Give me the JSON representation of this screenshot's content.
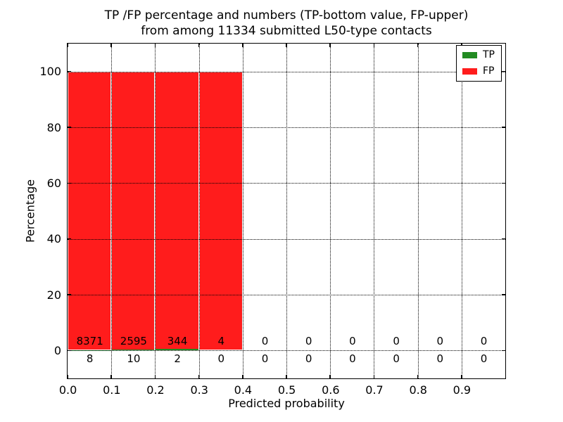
{
  "title": {
    "line1": "TP /FP percentage and numbers (TP-bottom value, FP-upper)",
    "line2": "from among 11334 submitted L50-type contacts"
  },
  "chart_data": {
    "type": "bar",
    "stacked": true,
    "title": "TP /FP percentage and numbers (TP-bottom value, FP-upper) from among 11334 submitted L50-type contacts",
    "xlabel": "Predicted probability",
    "ylabel": "Percentage",
    "xlim": [
      0.0,
      1.0
    ],
    "ylim": [
      -10,
      110
    ],
    "x_ticks": [
      0.0,
      0.1,
      0.2,
      0.3,
      0.4,
      0.5,
      0.6,
      0.7,
      0.8,
      0.9
    ],
    "y_ticks": [
      0,
      20,
      40,
      60,
      80,
      100
    ],
    "grid": "dotted black, drawn above bars",
    "bin_width": 0.1,
    "bin_starts": [
      0.0,
      0.1,
      0.2,
      0.3,
      0.4,
      0.5,
      0.6,
      0.7,
      0.8,
      0.9
    ],
    "total_submitted": 11334,
    "series": [
      {
        "name": "TP",
        "color": "#228b22",
        "counts": [
          8,
          10,
          2,
          0,
          0,
          0,
          0,
          0,
          0,
          0
        ],
        "pct": [
          0.095,
          0.384,
          0.578,
          0,
          0,
          0,
          0,
          0,
          0,
          0
        ]
      },
      {
        "name": "FP",
        "color": "#ff1c1c",
        "counts": [
          8371,
          2595,
          344,
          4,
          0,
          0,
          0,
          0,
          0,
          0
        ],
        "pct": [
          99.905,
          99.616,
          99.422,
          100,
          0,
          0,
          0,
          0,
          0,
          0
        ]
      }
    ],
    "bar_edge_color": "#ffffff",
    "frame_color": "#000000",
    "legend": {
      "position": "upper right",
      "entries": [
        "TP",
        "FP"
      ]
    },
    "annotation_note": "FP counts printed just above the 0% line, TP counts just below it, one per bin"
  }
}
